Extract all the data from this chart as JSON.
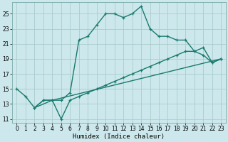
{
  "xlabel": "Humidex (Indice chaleur)",
  "bg_color": "#cce8ec",
  "grid_color": "#aacccc",
  "line_color": "#1a7a6e",
  "xlim": [
    -0.5,
    23.5
  ],
  "ylim": [
    10.5,
    26.5
  ],
  "xticks": [
    0,
    1,
    2,
    3,
    4,
    5,
    6,
    7,
    8,
    9,
    10,
    11,
    12,
    13,
    14,
    15,
    16,
    17,
    18,
    19,
    20,
    21,
    22,
    23
  ],
  "yticks": [
    11,
    13,
    15,
    17,
    19,
    21,
    23,
    25
  ],
  "series1_x": [
    0,
    1,
    2,
    3,
    4,
    5,
    6,
    7,
    8,
    9,
    10,
    11,
    12,
    13,
    14,
    15,
    16,
    17,
    18,
    19,
    20,
    21,
    22,
    23
  ],
  "series1_y": [
    15,
    14,
    12.5,
    13.5,
    13.5,
    13.5,
    14.5,
    21.5,
    22,
    23.5,
    25,
    25,
    24.5,
    25,
    26,
    23,
    22,
    22,
    21.5,
    21.5,
    20,
    19.5,
    18.5,
    19
  ],
  "series2_x": [
    2,
    3,
    4,
    5,
    6,
    7,
    8,
    9,
    10,
    11,
    12,
    13,
    14,
    15,
    16,
    17,
    18,
    19,
    20,
    21,
    22,
    23
  ],
  "series2_y": [
    12.5,
    13.5,
    13.5,
    11,
    13.5,
    14,
    14.5,
    15,
    15.5,
    16,
    16.5,
    17,
    17.5,
    18,
    18.5,
    19,
    19.5,
    20,
    20,
    20.5,
    18.5,
    19
  ],
  "series3_x": [
    2,
    4,
    23
  ],
  "series3_y": [
    12.5,
    13.5,
    19
  ]
}
